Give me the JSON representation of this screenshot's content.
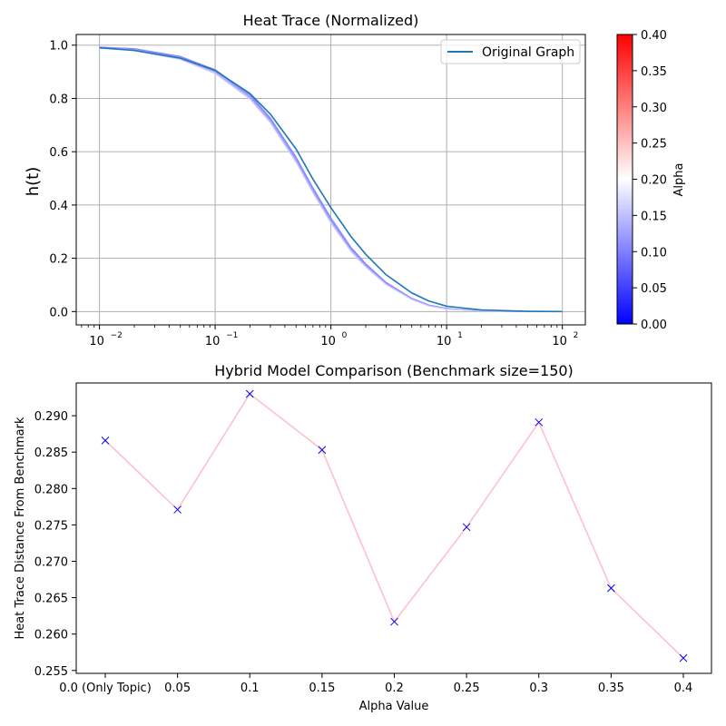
{
  "chart_data": [
    {
      "type": "line",
      "title": "Heat Trace (Normalized)",
      "xlabel": "",
      "ylabel": "h(t)",
      "xscale": "log",
      "xlim": [
        0.0063,
        158
      ],
      "ylim": [
        -0.05,
        1.04
      ],
      "x_ticks": [
        {
          "base": "10",
          "exp": "−2",
          "value": 0.01
        },
        {
          "base": "10",
          "exp": "−1",
          "value": 0.1
        },
        {
          "base": "10",
          "exp": "0",
          "value": 1
        },
        {
          "base": "10",
          "exp": "1",
          "value": 10
        },
        {
          "base": "10",
          "exp": "2",
          "value": 100
        }
      ],
      "y_ticks": [
        "0.0",
        "0.2",
        "0.4",
        "0.6",
        "0.8",
        "1.0"
      ],
      "grid": true,
      "legend": {
        "placement": "top-right",
        "entries": [
          "Original Graph"
        ]
      },
      "series": [
        {
          "name": "Original Graph",
          "color": "#1f77b4",
          "x": [
            0.01,
            0.02,
            0.05,
            0.1,
            0.2,
            0.3,
            0.5,
            0.7,
            1,
            1.5,
            2,
            3,
            5,
            7,
            10,
            20,
            50,
            100
          ],
          "y": [
            0.99,
            0.98,
            0.951,
            0.905,
            0.818,
            0.741,
            0.61,
            0.497,
            0.39,
            0.28,
            0.215,
            0.138,
            0.07,
            0.04,
            0.02,
            0.006,
            0.001,
            0.0
          ]
        }
      ],
      "alpha_curves": [
        {
          "alpha": 0.0,
          "color": "#8080ff",
          "x": [
            0.01,
            0.02,
            0.05,
            0.1,
            0.2,
            0.3,
            0.5,
            0.7,
            1,
            1.5,
            2,
            3,
            5,
            7,
            10,
            20,
            50,
            100
          ],
          "y": [
            0.993,
            0.987,
            0.958,
            0.908,
            0.815,
            0.727,
            0.58,
            0.465,
            0.352,
            0.24,
            0.18,
            0.11,
            0.05,
            0.025,
            0.012,
            0.002,
            0.0,
            0.0
          ]
        },
        {
          "alpha": 0.05,
          "color": "#8a8aff",
          "x": [
            0.01,
            0.02,
            0.05,
            0.1,
            0.2,
            0.3,
            0.5,
            0.7,
            1,
            1.5,
            2,
            3,
            5,
            7,
            10,
            20,
            50,
            100
          ],
          "y": [
            0.992,
            0.985,
            0.955,
            0.905,
            0.81,
            0.722,
            0.575,
            0.46,
            0.347,
            0.236,
            0.177,
            0.108,
            0.049,
            0.024,
            0.011,
            0.002,
            0.0,
            0.0
          ]
        },
        {
          "alpha": 0.1,
          "color": "#9a9aff",
          "x": [
            0.01,
            0.02,
            0.05,
            0.1,
            0.2,
            0.3,
            0.5,
            0.7,
            1,
            1.5,
            2,
            3,
            5,
            7,
            10,
            20,
            50,
            100
          ],
          "y": [
            0.991,
            0.983,
            0.952,
            0.901,
            0.806,
            0.718,
            0.57,
            0.455,
            0.342,
            0.232,
            0.173,
            0.105,
            0.047,
            0.023,
            0.01,
            0.002,
            0.0,
            0.0
          ]
        },
        {
          "alpha": 0.15,
          "color": "#b0b0ff",
          "x": [
            0.01,
            0.02,
            0.05,
            0.1,
            0.2,
            0.3,
            0.5,
            0.7,
            1,
            1.5,
            2,
            3,
            5,
            7,
            10,
            20,
            50,
            100
          ],
          "y": [
            0.99,
            0.981,
            0.949,
            0.897,
            0.801,
            0.713,
            0.565,
            0.45,
            0.337,
            0.228,
            0.17,
            0.103,
            0.046,
            0.022,
            0.01,
            0.002,
            0.0,
            0.0
          ]
        },
        {
          "alpha": 0.2,
          "color": "#ccccff",
          "x": [
            0.01,
            0.02,
            0.05,
            0.1,
            0.2,
            0.3,
            0.5,
            0.7,
            1,
            1.5,
            2,
            3,
            5,
            7,
            10,
            20,
            50,
            100
          ],
          "y": [
            0.989,
            0.979,
            0.946,
            0.893,
            0.797,
            0.708,
            0.56,
            0.445,
            0.332,
            0.224,
            0.167,
            0.101,
            0.045,
            0.021,
            0.009,
            0.002,
            0.0,
            0.0
          ]
        }
      ],
      "colorbar": {
        "label": "Alpha",
        "range": [
          0.0,
          0.4
        ],
        "ticks": [
          "0.00",
          "0.05",
          "0.10",
          "0.15",
          "0.20",
          "0.25",
          "0.30",
          "0.35",
          "0.40"
        ],
        "colormap": [
          "#0000ff",
          "#ffffff",
          "#ff0000"
        ]
      }
    },
    {
      "type": "line",
      "title": "Hybrid Model Comparison (Benchmark size=150)",
      "xlabel": "Alpha Value",
      "ylabel": "Heat Trace Distance From Benchmark",
      "categories": [
        "0.0 (Only Topic)",
        "0.05",
        "0.1",
        "0.15",
        "0.2",
        "0.25",
        "0.3",
        "0.35",
        "0.4"
      ],
      "ylim": [
        0.2546,
        0.2945
      ],
      "y_ticks": [
        "0.255",
        "0.260",
        "0.265",
        "0.270",
        "0.275",
        "0.280",
        "0.285",
        "0.290"
      ],
      "grid": false,
      "series": [
        {
          "name": "",
          "line_color": "#ffc0cb",
          "marker": "x",
          "marker_color": "#0000ff",
          "values": [
            0.2866,
            0.2771,
            0.293,
            0.2853,
            0.2617,
            0.2747,
            0.2891,
            0.2663,
            0.2567
          ]
        }
      ]
    }
  ]
}
